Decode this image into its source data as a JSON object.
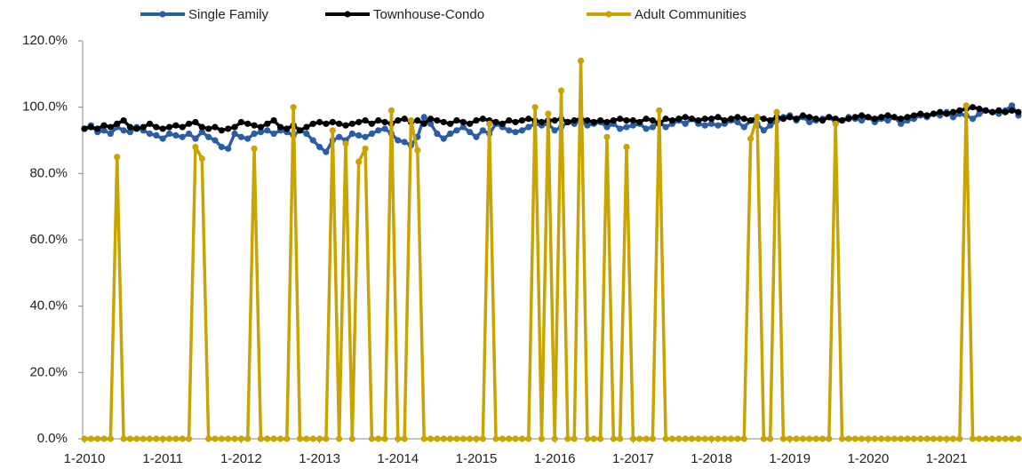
{
  "chart_data": {
    "type": "line",
    "categories": [
      "1-2010",
      null,
      null,
      null,
      null,
      null,
      null,
      null,
      null,
      null,
      null,
      null,
      "1-2011",
      null,
      null,
      null,
      null,
      null,
      null,
      null,
      null,
      null,
      null,
      null,
      "1-2012",
      null,
      null,
      null,
      null,
      null,
      null,
      null,
      null,
      null,
      null,
      null,
      "1-2013",
      null,
      null,
      null,
      null,
      null,
      null,
      null,
      null,
      null,
      null,
      null,
      "1-2014",
      null,
      null,
      null,
      null,
      null,
      null,
      null,
      null,
      null,
      null,
      null,
      "1-2015",
      null,
      null,
      null,
      null,
      null,
      null,
      null,
      null,
      null,
      null,
      null,
      "1-2016",
      null,
      null,
      null,
      null,
      null,
      null,
      null,
      null,
      null,
      null,
      null,
      "1-2017",
      null,
      null,
      null,
      null,
      null,
      null,
      null,
      null,
      null,
      null,
      null,
      "1-2018",
      null,
      null,
      null,
      null,
      null,
      null,
      null,
      null,
      null,
      null,
      null,
      "1-2019",
      null,
      null,
      null,
      null,
      null,
      null,
      null,
      null,
      null,
      null,
      null,
      "1-2020",
      null,
      null,
      null,
      null,
      null,
      null,
      null,
      null,
      null,
      null,
      null,
      "1-2021",
      null,
      null,
      null,
      null,
      null,
      null,
      null,
      null,
      null,
      null,
      null
    ],
    "series": [
      {
        "name": "Single Family",
        "color": "#2a5ca8",
        "values": [
          93.5,
          94.5,
          92.5,
          93,
          92,
          94,
          93,
          92.5,
          94,
          93,
          92,
          91.5,
          90.5,
          92,
          91.5,
          91,
          92,
          90.5,
          92.5,
          91,
          90,
          88,
          87.5,
          92,
          91,
          90.5,
          92,
          92.5,
          93,
          92,
          93,
          92.5,
          91.5,
          93,
          92,
          90,
          88,
          86.5,
          90,
          91,
          90,
          92,
          91.5,
          91,
          92,
          93,
          93.5,
          92,
          90,
          89.5,
          88.5,
          91,
          97,
          95,
          92,
          90.5,
          92,
          93,
          94,
          92.5,
          91,
          93,
          92,
          95,
          94,
          93,
          92.5,
          93,
          94,
          95,
          94.5,
          95,
          93,
          94,
          95.5,
          95,
          96,
          94.5,
          95,
          95.5,
          94,
          95,
          93.5,
          94,
          94.5,
          95,
          93.5,
          94,
          95.5,
          94,
          95,
          96,
          95,
          96.5,
          95,
          94.5,
          95,
          94.5,
          95,
          96,
          95.5,
          94,
          96,
          95,
          93,
          94.5,
          96,
          97,
          97.5,
          96,
          97,
          95.5,
          96,
          96.5,
          97,
          95.5,
          96,
          97,
          96.5,
          96,
          97,
          95.5,
          96.5,
          96,
          97,
          95,
          96,
          96.5,
          97.5,
          97,
          98,
          97.5,
          98.5,
          97,
          98,
          97.5,
          96.5,
          98,
          99,
          98.5,
          98,
          99,
          100.5,
          97.5
        ]
      },
      {
        "name": "Townhouse-Condo",
        "color": "#000000",
        "values": [
          93.5,
          94,
          93.5,
          94.5,
          94,
          95,
          96,
          94,
          93.5,
          94,
          95,
          94,
          93.5,
          94,
          94.5,
          94,
          95,
          95.5,
          94,
          93.5,
          94,
          93,
          93.5,
          94,
          95.5,
          95,
          94.5,
          94,
          95,
          96,
          94,
          93.5,
          94.5,
          93,
          94,
          95,
          95.5,
          95,
          95.5,
          95,
          94.5,
          95,
          95.5,
          96,
          95,
          96,
          95.5,
          95,
          96,
          96.5,
          95.5,
          96,
          95,
          96.5,
          96,
          95.5,
          95,
          96,
          95.5,
          95,
          96,
          96.5,
          96,
          95.5,
          95,
          96,
          95.5,
          96,
          96.5,
          96,
          95.5,
          96,
          96,
          96.5,
          95.5,
          96,
          96.5,
          96,
          95.5,
          96,
          95.5,
          96,
          96.5,
          96,
          96,
          95.5,
          96.5,
          96,
          95,
          96.5,
          96,
          96.5,
          97,
          96.5,
          96,
          96.5,
          96.5,
          97,
          96,
          96.5,
          97,
          96.5,
          96,
          97,
          96.5,
          96,
          97,
          96.5,
          97,
          96.5,
          97.5,
          97,
          96.5,
          96,
          97,
          96.5,
          96,
          96.5,
          97,
          97.5,
          97,
          96.5,
          97,
          97.5,
          97,
          96.5,
          97,
          97.5,
          98,
          97.5,
          98,
          98.5,
          98,
          98.5,
          99,
          99.5,
          100,
          99.5,
          99,
          98.5,
          99,
          98.5,
          99,
          98.5
        ]
      },
      {
        "name": "Adult Communities",
        "color": "#c9a400",
        "values": [
          0,
          0,
          0,
          0,
          0,
          85,
          0,
          0,
          0,
          0,
          0,
          0,
          0,
          0,
          0,
          0,
          0,
          88,
          84.5,
          0,
          0,
          0,
          0,
          0,
          0,
          0,
          87.5,
          0,
          0,
          0,
          0,
          0,
          100,
          0,
          0,
          0,
          0,
          0,
          93,
          0,
          89,
          0,
          83.5,
          87.5,
          0,
          0,
          0,
          99,
          0,
          0,
          96,
          87,
          0,
          0,
          0,
          0,
          0,
          0,
          0,
          0,
          0,
          0,
          95,
          0,
          0,
          0,
          0,
          0,
          0,
          100,
          0,
          98,
          0,
          105,
          0,
          0,
          114,
          0,
          0,
          0,
          91,
          0,
          0,
          88,
          0,
          0,
          0,
          0,
          99,
          0,
          0,
          0,
          0,
          0,
          0,
          0,
          0,
          0,
          0,
          0,
          0,
          0,
          90.5,
          97,
          0,
          0,
          98.5,
          0,
          0,
          0,
          0,
          0,
          0,
          0,
          0,
          95,
          0,
          0,
          0,
          0,
          0,
          0,
          0,
          0,
          0,
          0,
          0,
          0,
          0,
          0,
          0,
          0,
          0,
          0,
          0,
          100.5,
          0,
          0,
          0,
          0,
          0,
          0,
          0,
          0
        ]
      }
    ],
    "ylim": [
      0,
      120
    ],
    "yticks": [
      {
        "value": 0,
        "label": "0.0%"
      },
      {
        "value": 20,
        "label": "20.0%"
      },
      {
        "value": 40,
        "label": "40.0%"
      },
      {
        "value": 60,
        "label": "60.0%"
      },
      {
        "value": 80,
        "label": "80.0%"
      },
      {
        "value": 100,
        "label": "100.0%"
      },
      {
        "value": 120,
        "label": "120.0%"
      }
    ],
    "grid": false,
    "legend": "top"
  }
}
